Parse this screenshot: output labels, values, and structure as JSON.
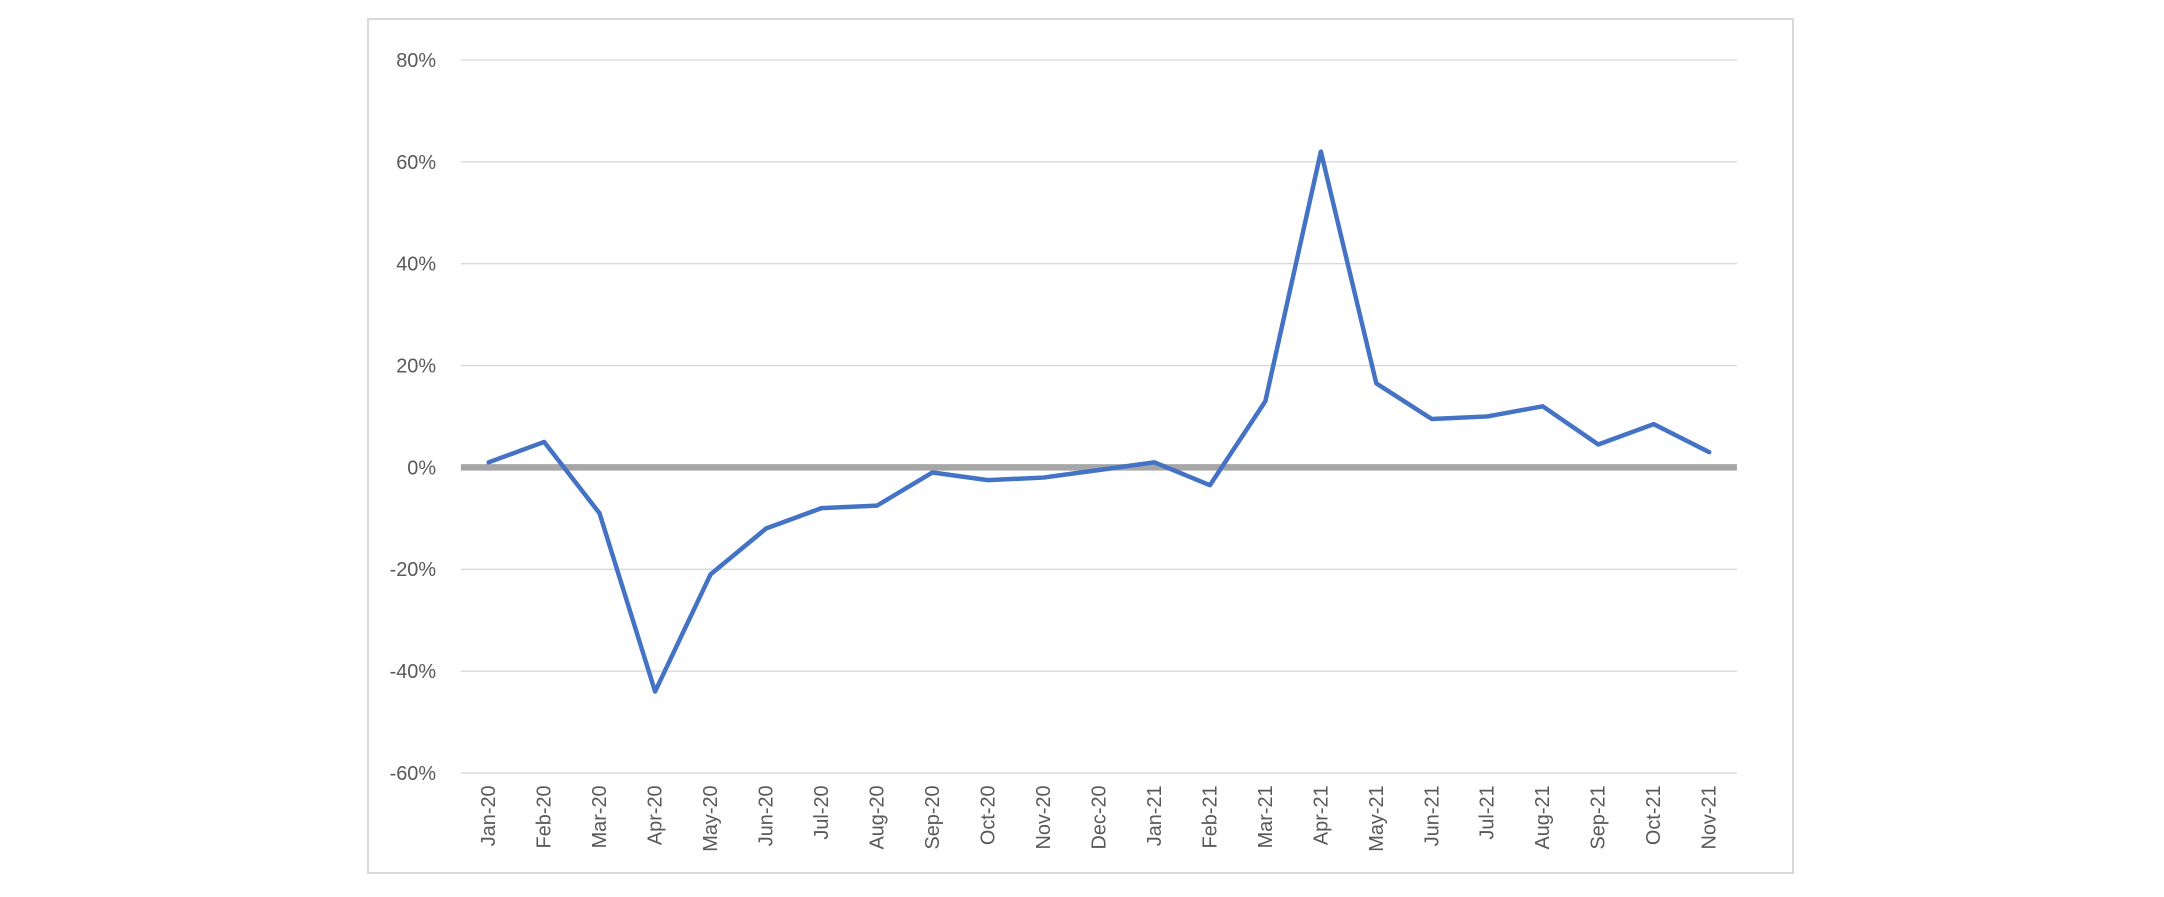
{
  "chart_data": {
    "type": "line",
    "title": "",
    "xlabel": "",
    "ylabel": "",
    "categories": [
      "Jan-20",
      "Feb-20",
      "Mar-20",
      "Apr-20",
      "May-20",
      "Jun-20",
      "Jul-20",
      "Aug-20",
      "Sep-20",
      "Oct-20",
      "Nov-20",
      "Dec-20",
      "Jan-21",
      "Feb-21",
      "Mar-21",
      "Apr-21",
      "May-21",
      "Jun-21",
      "Jul-21",
      "Aug-21",
      "Sep-21",
      "Oct-21",
      "Nov-21"
    ],
    "series": [
      {
        "name": "",
        "values": [
          1,
          5,
          -9,
          -44,
          -21,
          -12,
          -8,
          -7.5,
          -1,
          -2.5,
          -2,
          -0.5,
          1,
          -3.5,
          13,
          62,
          16.5,
          9.5,
          10,
          12,
          4.5,
          8.5,
          3
        ]
      }
    ],
    "y_ticks": [
      80,
      60,
      40,
      20,
      0,
      -20,
      -40,
      -60
    ],
    "y_tick_labels": [
      "80%",
      "60%",
      "40%",
      "20%",
      "0%",
      "-20%",
      "-40%",
      "-60%"
    ],
    "ylim": [
      -60,
      80
    ],
    "grid": "horizontal",
    "legend": "none",
    "x_label_rotation_degrees": 90,
    "zero_line": true,
    "colors": {
      "series": "#4472C4",
      "zero_line": "#A6A6A6",
      "gridline": "#D9D9D9",
      "axis_text": "#595959",
      "chart_border": "#D9D9D9",
      "background": "#FFFFFF"
    }
  }
}
